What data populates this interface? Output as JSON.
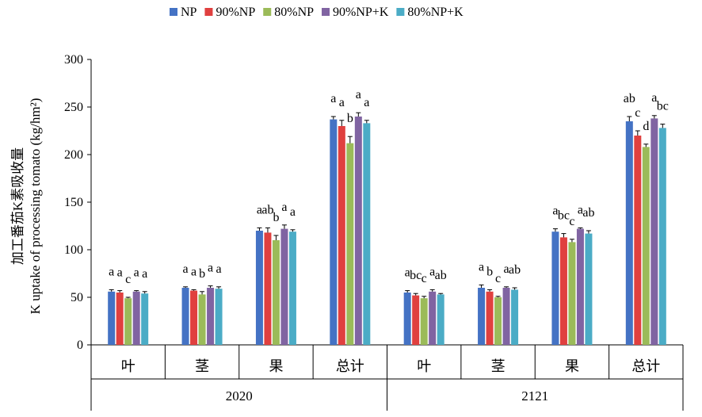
{
  "colors": {
    "NP": "#4472c4",
    "90%NP": "#e0403f",
    "80%NP": "#9bbb59",
    "90%NP+K": "#8064a2",
    "80%NP+K": "#4bacc6"
  },
  "chart_data": {
    "type": "bar",
    "title": "",
    "ylabel_zh": "加工番茄K素吸收量",
    "ylabel_en": "K uptake of processing tomato (kg/hm²)",
    "ylim": [
      0,
      300
    ],
    "yticks": [
      "0",
      "50",
      "100",
      "150",
      "200",
      "250",
      "300"
    ],
    "legend_position": "top",
    "groups": [
      {
        "label": "2020",
        "categories": [
          "叶",
          "茎",
          "果",
          "总计"
        ]
      },
      {
        "label": "2121",
        "categories": [
          "叶",
          "茎",
          "果",
          "总计"
        ]
      }
    ],
    "series": [
      {
        "name": "NP",
        "values": [
          56,
          60,
          120,
          237,
          55,
          60,
          119,
          235
        ],
        "errors": [
          2,
          1,
          3,
          3,
          2,
          3,
          3,
          5
        ],
        "letters": [
          "a",
          "a",
          "a",
          "a",
          "a",
          "a",
          "a",
          "ab"
        ]
      },
      {
        "name": "90%NP",
        "values": [
          55,
          57,
          118,
          230,
          52,
          56,
          113,
          220
        ],
        "errors": [
          2,
          1,
          5,
          6,
          2,
          2,
          4,
          5
        ],
        "letters": [
          "a",
          "a",
          "ab",
          "a",
          "bc",
          "b",
          "bc",
          "c"
        ]
      },
      {
        "name": "80%NP",
        "values": [
          49,
          53,
          110,
          212,
          49,
          50,
          108,
          208
        ],
        "errors": [
          1,
          3,
          5,
          7,
          2,
          1,
          3,
          3
        ],
        "letters": [
          "c",
          "b",
          "b",
          "b",
          "c",
          "c",
          "c",
          "d"
        ]
      },
      {
        "name": "90%NP+K",
        "values": [
          56,
          60,
          122,
          240,
          56,
          60,
          122,
          238
        ],
        "errors": [
          1,
          2,
          4,
          4,
          2,
          1,
          1,
          3
        ],
        "letters": [
          "a",
          "a",
          "a",
          "a",
          "a",
          "a",
          "a",
          "a"
        ]
      },
      {
        "name": "80%NP+K",
        "values": [
          54,
          59,
          119,
          233,
          53,
          58,
          117,
          228
        ],
        "errors": [
          2,
          2,
          2,
          3,
          1,
          2,
          3,
          4
        ],
        "letters": [
          "a",
          "a",
          "a",
          "a",
          "ab",
          "ab",
          "ab",
          "bc"
        ]
      }
    ]
  }
}
